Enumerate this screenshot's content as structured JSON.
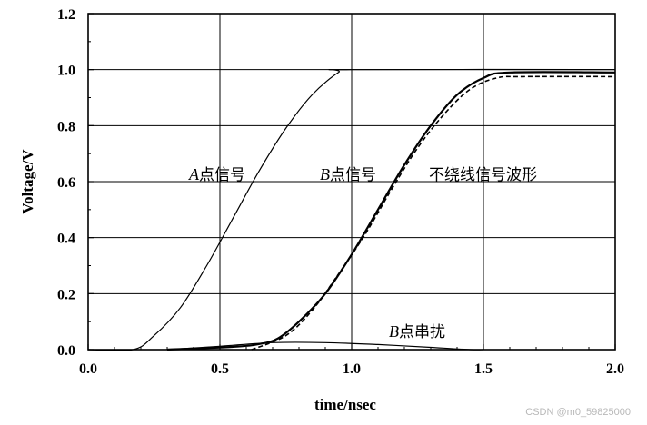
{
  "chart_data": {
    "type": "line",
    "xlabel": "time/nsec",
    "ylabel": "Voltage/V",
    "xlim": [
      0.0,
      2.0
    ],
    "ylim": [
      0.0,
      1.2
    ],
    "x_ticks": [
      "0.0",
      "0.5",
      "1.0",
      "1.5",
      "2.0"
    ],
    "y_ticks": [
      "0.0",
      "0.2",
      "0.4",
      "0.6",
      "0.8",
      "1.0",
      "1.2"
    ],
    "grid": true,
    "series": [
      {
        "label_letter": "A",
        "label_text": "点信号",
        "style": "solid",
        "points": [
          [
            0.0,
            0.0
          ],
          [
            0.17,
            0.0
          ],
          [
            0.25,
            0.05
          ],
          [
            0.35,
            0.15
          ],
          [
            0.45,
            0.3
          ],
          [
            0.55,
            0.47
          ],
          [
            0.65,
            0.64
          ],
          [
            0.75,
            0.79
          ],
          [
            0.85,
            0.91
          ],
          [
            0.95,
            0.99
          ],
          [
            1.0,
            1.0
          ],
          [
            2.0,
            1.0
          ]
        ]
      },
      {
        "label_letter": "B",
        "label_text": "点信号",
        "style": "solid-bold",
        "points": [
          [
            0.3,
            0.0
          ],
          [
            0.55,
            0.01
          ],
          [
            0.65,
            0.02
          ],
          [
            0.72,
            0.04
          ],
          [
            0.8,
            0.1
          ],
          [
            0.9,
            0.2
          ],
          [
            1.0,
            0.34
          ],
          [
            1.1,
            0.5
          ],
          [
            1.2,
            0.66
          ],
          [
            1.3,
            0.8
          ],
          [
            1.4,
            0.91
          ],
          [
            1.5,
            0.97
          ],
          [
            1.6,
            0.99
          ],
          [
            2.0,
            0.99
          ]
        ]
      },
      {
        "label_text": "不绕线信号波形",
        "style": "dashed",
        "points": [
          [
            0.62,
            0.0
          ],
          [
            0.75,
            0.05
          ],
          [
            0.85,
            0.14
          ],
          [
            0.95,
            0.27
          ],
          [
            1.05,
            0.41
          ],
          [
            1.15,
            0.57
          ],
          [
            1.25,
            0.72
          ],
          [
            1.35,
            0.84
          ],
          [
            1.45,
            0.93
          ],
          [
            1.55,
            0.97
          ],
          [
            1.65,
            0.975
          ],
          [
            2.0,
            0.975
          ]
        ]
      },
      {
        "label_letter": "B",
        "label_text": "点串扰",
        "style": "solid",
        "points": [
          [
            0.3,
            0.0
          ],
          [
            0.5,
            0.012
          ],
          [
            0.7,
            0.025
          ],
          [
            0.9,
            0.025
          ],
          [
            1.1,
            0.018
          ],
          [
            1.3,
            0.008
          ],
          [
            1.45,
            0.0
          ],
          [
            1.5,
            0.0
          ]
        ]
      }
    ]
  },
  "annotations": {
    "a_signal_letter": "A",
    "a_signal_text": "点信号",
    "b_signal_letter": "B",
    "b_signal_text": "点信号",
    "no_wind_text": "不绕线信号波形",
    "b_crosstalk_letter": "B",
    "b_crosstalk_text": "点串扰"
  },
  "watermark": "CSDN @m0_59825000"
}
